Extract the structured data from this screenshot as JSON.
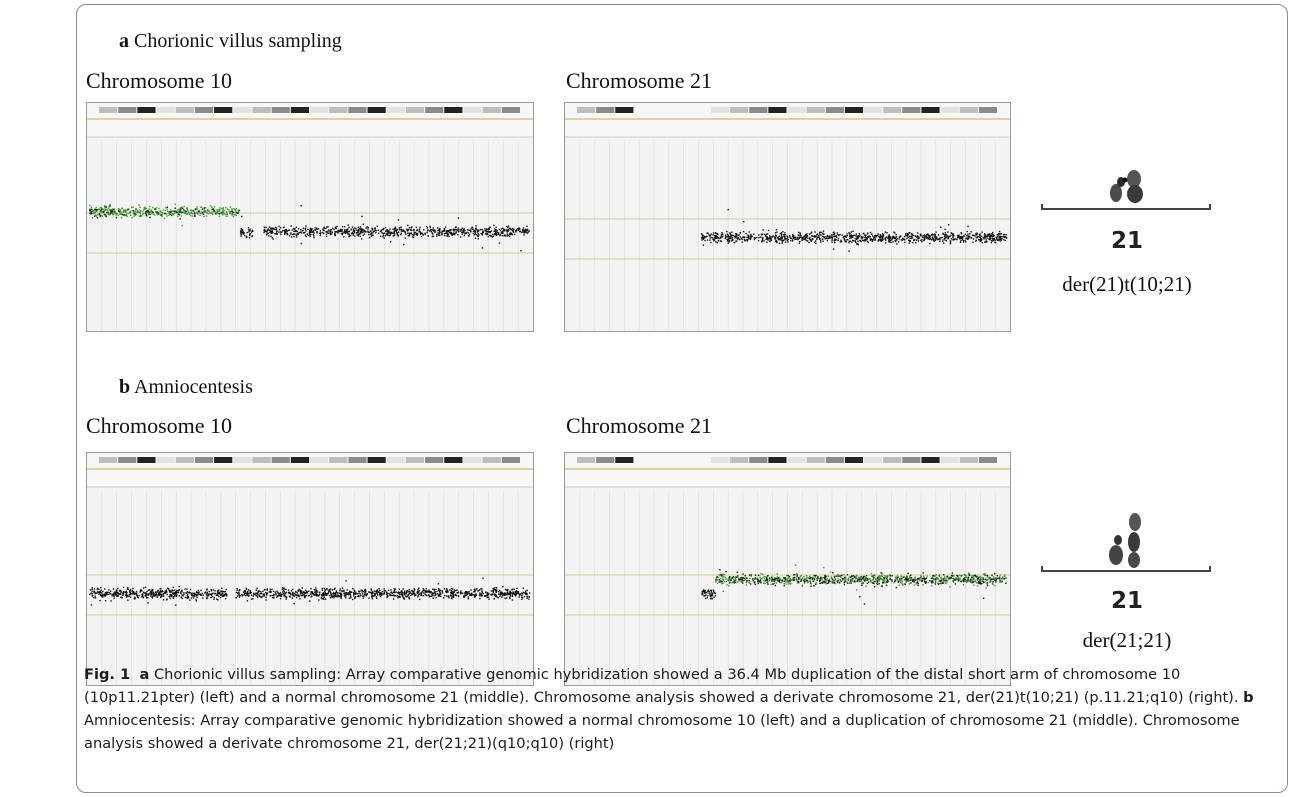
{
  "panel_a": {
    "letter": "a",
    "title": "Chorionic villus sampling",
    "left_plot_title": "Chromosome 10",
    "middle_plot_title": "Chromosome 21",
    "karyotype_number": "21",
    "karyotype_formula": "der(21)t(10;21)"
  },
  "panel_b": {
    "letter": "b",
    "title": "Amniocentesis",
    "left_plot_title": "Chromosome 10",
    "middle_plot_title": "Chromosome 21",
    "karyotype_number": "21",
    "karyotype_formula": "der(21;21)"
  },
  "caption": {
    "fig_label": "Fig. 1",
    "a_letter": "a",
    "a_text": " Chorionic villus sampling: Array comparative genomic hybridization showed a 36.4 Mb duplication of the distal short arm of chromosome 10 (10p11.21pter) (left) and a normal chromosome 21 (middle). Chromosome analysis showed a derivate chromosome 21, der(21)t(10;21) (p.11.21;q10) (right). ",
    "b_letter": "b",
    "b_text": " Amniocentesis: Array comparative genomic hybridization showed a normal chromosome 10 (left) and a duplication of chromosome 21 (middle). Chromosome analysis showed a derivate chromosome 21, der(21;21)(q10;q10) (right)"
  },
  "colors": {
    "gain_points": "#3e9b2f",
    "normal_points": "#111111",
    "baseline": "#c9c25a",
    "ideogram_band_dark": "#222222",
    "ideogram_band_light": "#bdbdbd",
    "plot_bg": "#f3f3f3"
  }
}
